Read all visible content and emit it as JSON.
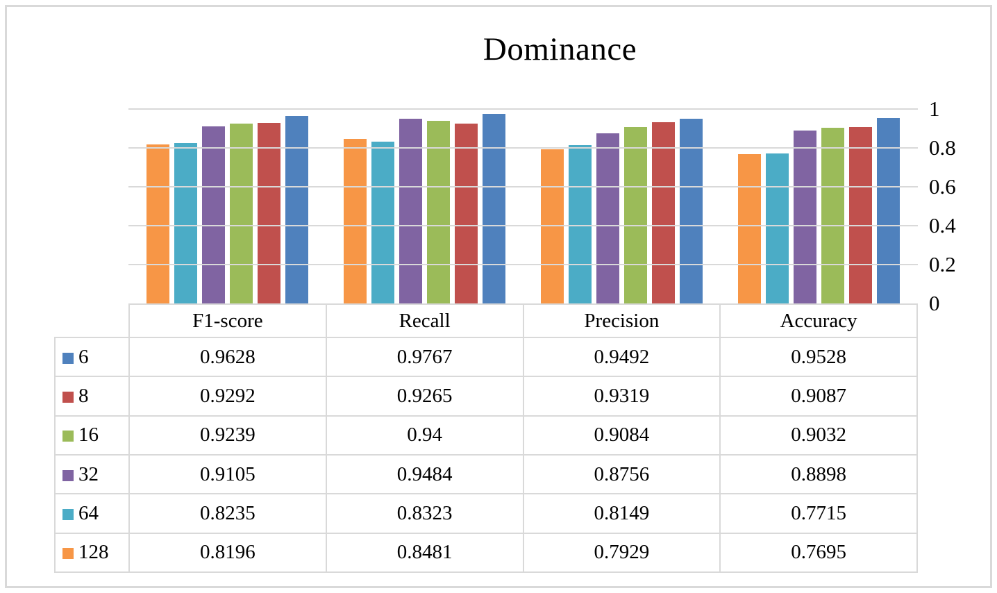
{
  "title": "Dominance",
  "chart_data": {
    "type": "bar",
    "title": "Dominance",
    "categories": [
      "F1-score",
      "Recall",
      "Precision",
      "Accuracy"
    ],
    "series": [
      {
        "name": "6",
        "color": "#4F81BD",
        "values": [
          0.9628,
          0.9767,
          0.9492,
          0.9528
        ]
      },
      {
        "name": "8",
        "color": "#C0504D",
        "values": [
          0.9292,
          0.9265,
          0.9319,
          0.9087
        ]
      },
      {
        "name": "16",
        "color": "#9BBB59",
        "values": [
          0.9239,
          0.94,
          0.9084,
          0.9032
        ]
      },
      {
        "name": "32",
        "color": "#8064A2",
        "values": [
          0.9105,
          0.9484,
          0.8756,
          0.8898
        ]
      },
      {
        "name": "64",
        "color": "#4BACC6",
        "values": [
          0.8235,
          0.8323,
          0.8149,
          0.7715
        ]
      },
      {
        "name": "128",
        "color": "#F79646",
        "values": [
          0.8196,
          0.8481,
          0.7929,
          0.7695
        ]
      }
    ],
    "bar_order_left_to_right": [
      "128",
      "64",
      "32",
      "16",
      "8",
      "6"
    ],
    "ylim": [
      0,
      1
    ],
    "yticks": [
      1,
      0.8,
      0.6,
      0.4,
      0.2,
      0
    ],
    "axis_side": "right",
    "grid": true,
    "legend_position": "data-table-left-column",
    "data_table_shown": true
  },
  "colors": {
    "gridline": "#D9D9D9",
    "table_border": "#D9D9D9",
    "frame_border": "#D9D9D9",
    "text": "#000000",
    "background": "#FFFFFF"
  }
}
